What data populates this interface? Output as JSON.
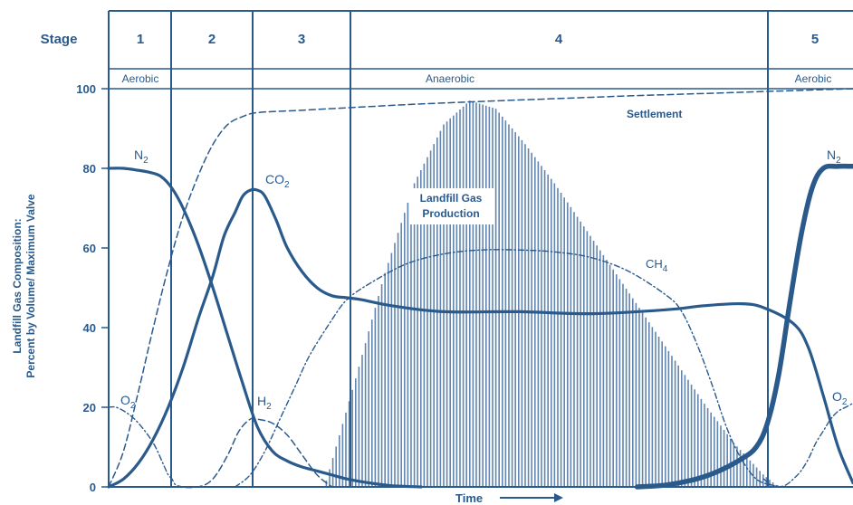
{
  "colors": {
    "main": "#2a5a8c",
    "bars": "#5f85b0",
    "background": "#ffffff"
  },
  "stage_row": {
    "header": "Stage",
    "stages": [
      "1",
      "2",
      "3",
      "4",
      "5"
    ],
    "conditions": [
      "Aerobic",
      "Anaerobic",
      "Aerobic"
    ]
  },
  "chart_data": {
    "type": "line",
    "title": "",
    "xlabel": "Time",
    "ylabel": "Landfill Gas Composition: Percent by Volume/ Maximum Valve",
    "ylim": [
      0,
      100
    ],
    "yticks": [
      0,
      20,
      40,
      60,
      80,
      100
    ],
    "x_scale": "relative time from 0 to 100",
    "stage_boundaries": [
      8,
      19,
      32,
      87
    ],
    "series": [
      {
        "name": "N2",
        "subscript": "2",
        "style": "solid",
        "x": [
          0,
          2,
          4,
          5.5,
          7,
          8.5,
          10,
          12,
          14,
          16,
          18,
          20,
          22,
          24,
          26,
          28,
          30,
          32,
          35,
          38,
          42
        ],
        "y": [
          80,
          80,
          79.5,
          79,
          78,
          75,
          70,
          61,
          50,
          38,
          26,
          15,
          9,
          6.5,
          5,
          4,
          3,
          2,
          1,
          0.3,
          0
        ]
      },
      {
        "name": "CO2",
        "subscript": "2",
        "style": "solid",
        "x": [
          0,
          2,
          4,
          6,
          8,
          10,
          12,
          14,
          15.5,
          17,
          18,
          19,
          20,
          21,
          22.5,
          24,
          26,
          28,
          30,
          32,
          34,
          38,
          45,
          55,
          65,
          75,
          80,
          85,
          88,
          92,
          94,
          96,
          98,
          100
        ],
        "y": [
          0,
          2,
          6,
          12,
          20,
          30,
          42,
          53,
          63,
          69,
          73,
          74.5,
          74.5,
          73,
          67,
          60,
          54,
          50,
          48,
          47.5,
          47,
          45.5,
          44,
          44,
          43.5,
          44.5,
          45.5,
          46,
          45,
          41,
          35,
          23,
          10,
          1
        ]
      },
      {
        "name": "O2",
        "subscript": "2",
        "style": "dash-dot",
        "x": [
          0,
          1,
          2.5,
          4,
          6,
          7.5,
          8,
          8.5,
          9,
          10
        ],
        "y": [
          20,
          20,
          18.5,
          16,
          11,
          5,
          3,
          2,
          0.5,
          0
        ]
      },
      {
        "name": "O2",
        "subscript": "2",
        "style": "dash-dot",
        "x": [
          88,
          89,
          90,
          91,
          92,
          93,
          94,
          95,
          96,
          97,
          98,
          99,
          100
        ],
        "y": [
          2,
          0.5,
          0,
          0.5,
          2,
          4,
          7,
          11,
          14,
          17,
          19,
          20,
          21
        ]
      },
      {
        "name": "H2",
        "subscript": "2",
        "style": "dashed",
        "x": [
          9,
          12,
          14,
          16,
          17.5,
          19,
          20,
          22,
          24,
          26,
          28,
          30
        ],
        "y": [
          0,
          0,
          2,
          8,
          14,
          17,
          17,
          16,
          13,
          8,
          3,
          0
        ]
      },
      {
        "name": "CH4",
        "subscript": "4",
        "style": "dash-dot",
        "x": [
          17,
          19,
          21,
          23,
          25,
          27,
          30,
          32,
          35,
          40,
          45,
          50,
          55,
          60,
          65,
          70,
          75,
          77,
          79,
          81,
          83,
          85,
          87,
          89,
          91
        ],
        "y": [
          0,
          3,
          9,
          17,
          25,
          33,
          42,
          47,
          51,
          56,
          58.5,
          59.5,
          59.5,
          59,
          57.5,
          54,
          48,
          44,
          36,
          26,
          15,
          7,
          2,
          0.5,
          0
        ]
      },
      {
        "name": "Settlement",
        "style": "dashed",
        "x": [
          0,
          2,
          4,
          6,
          8,
          10,
          12,
          14,
          16,
          18,
          20,
          25,
          30,
          35,
          40,
          50,
          60,
          70,
          80,
          90,
          100
        ],
        "y": [
          0,
          9,
          24,
          40,
          55,
          68,
          78,
          86,
          91,
          93,
          94,
          94.5,
          95,
          95.5,
          96,
          96.8,
          97.5,
          98.2,
          98.8,
          99.4,
          100
        ]
      },
      {
        "name": "N2",
        "subscript": "2",
        "style": "solid-thick",
        "x": [
          71,
          75,
          79,
          82,
          85,
          87,
          88.5,
          90,
          91.5,
          93,
          94.5,
          96,
          98,
          100
        ],
        "y": [
          0,
          0.5,
          2,
          4,
          7,
          10,
          16,
          28,
          46,
          63,
          75,
          80,
          80.5,
          80.5
        ]
      }
    ],
    "production": {
      "name": "Landfill Gas Production",
      "x": [
        29,
        33,
        37,
        41,
        45,
        48.5,
        52,
        56,
        60,
        64,
        68,
        72,
        76,
        80,
        84,
        88,
        90
      ],
      "y": [
        0,
        26,
        53,
        76,
        91,
        97,
        95,
        86,
        76,
        65,
        54,
        43,
        32,
        21,
        11,
        3,
        0
      ]
    }
  },
  "annotations": {
    "n2_left": "N",
    "n2_right": "N",
    "co2": "CO",
    "o2_left": "O",
    "o2_right": "O",
    "h2": "H",
    "ch4": "CH",
    "sub_2": "2",
    "sub_4": "4",
    "settlement": "Settlement",
    "production_line1": "Landfill Gas",
    "production_line2": "Production",
    "ylabel_line1": "Landfill Gas Composition:",
    "ylabel_line2": "Percent by Volume/ Maximum Valve",
    "xlabel": "Time"
  }
}
